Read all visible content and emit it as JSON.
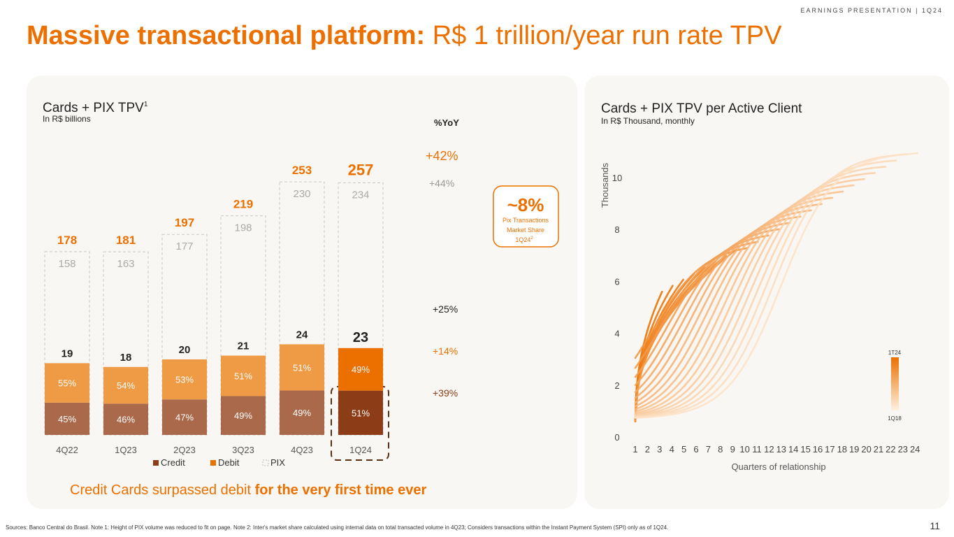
{
  "header": {
    "tag": "EARNINGS PRESENTATION | 1Q24"
  },
  "title": {
    "bold": "Massive transactional platform:",
    "light": " R$ 1 trillion/year run rate TPV"
  },
  "left_chart": {
    "title": "Cards + PIX TPV",
    "title_sup": "1",
    "subtitle": "In R$ billions",
    "yoy_header": "%YoY",
    "yoy": {
      "total": "+42%",
      "pix": "+44%",
      "cards": "+25%",
      "debit": "+14%",
      "credit": "+39%"
    },
    "callout": {
      "value": "~8%",
      "line1": "Pix Transactions",
      "line2": "Market Share",
      "line3": "1Q24",
      "line3_sup": "2"
    },
    "legend": {
      "credit": "Credit",
      "debit": "Debit",
      "pix": "PIX"
    },
    "tagline": {
      "normal": "Credit Cards surpassed debit ",
      "bold": "for the very first time ever"
    }
  },
  "right_chart": {
    "title": "Cards + PIX TPV per Active Client",
    "subtitle": "In R$ Thousand, monthly",
    "ylabel": "Thousands",
    "xlabel": "Quarters of relationship",
    "legend_top": "1T24",
    "legend_bottom": "1Q18"
  },
  "chart_data": [
    {
      "type": "bar",
      "title": "Cards + PIX TPV",
      "categories": [
        "4Q22",
        "1Q23",
        "2Q23",
        "3Q23",
        "4Q23",
        "1Q24"
      ],
      "totals": [
        178,
        181,
        197,
        219,
        253,
        257
      ],
      "series": [
        {
          "name": "Cards",
          "values": [
            19,
            18,
            20,
            21,
            24,
            23
          ]
        },
        {
          "name": "Credit share",
          "values": [
            "45%",
            "46%",
            "47%",
            "49%",
            "49%",
            "51%"
          ]
        },
        {
          "name": "Debit share",
          "values": [
            "55%",
            "54%",
            "53%",
            "51%",
            "51%",
            "49%"
          ]
        },
        {
          "name": "PIX",
          "values": [
            158,
            163,
            177,
            198,
            230,
            234
          ]
        }
      ],
      "credit_pct": [
        45,
        46,
        47,
        49,
        49,
        51
      ],
      "colors": {
        "credit": "#a9694a",
        "credit_highlight": "#8c3c16",
        "debit": "#ef9a45",
        "debit_highlight": "#ec7000",
        "total": "#ec7000"
      }
    },
    {
      "type": "line",
      "title": "Cards + PIX TPV per Active Client",
      "xlabel": "Quarters of relationship",
      "ylabel": "Thousands",
      "x_ticks": [
        "1",
        "2",
        "3",
        "4",
        "5",
        "6",
        "7",
        "8",
        "9",
        "10",
        "11",
        "12",
        "13",
        "14",
        "15",
        "16",
        "17",
        "18",
        "19",
        "20",
        "21",
        "22",
        "23",
        "24"
      ],
      "y_ticks": [
        "0",
        "2",
        "4",
        "6",
        "8",
        "10"
      ],
      "ylim": [
        0,
        11
      ],
      "cohorts": 25,
      "series_note": "One line per acquisition cohort, 1Q18 (light) to 1T24 (dark)"
    }
  ],
  "footer": {
    "sources": "Sources: Banco Central do Brasil.  Note 1: Height of PIX volume was reduced to fit on page. Note 2: Inter's market share calculated using internal data on total transacted volume in 4Q23; Considers transactions within the Instant Payment System (SPI) only as of 1Q24.",
    "page": "11"
  }
}
